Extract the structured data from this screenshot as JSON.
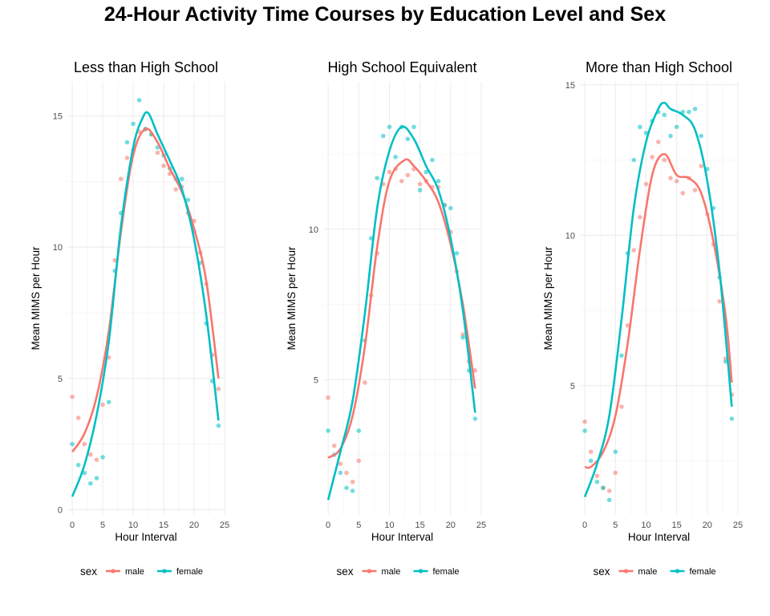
{
  "title": "24-Hour Activity Time Courses by Education Level and Sex",
  "colors": {
    "male": "#F8766D",
    "female": "#00BFC4"
  },
  "legend": {
    "title": "sex",
    "items": [
      "male",
      "female"
    ]
  },
  "chart_data": [
    {
      "type": "scatter",
      "title": "Less than High School",
      "xlabel": "Hour Interval",
      "ylabel": "Mean MIMS per Hour",
      "xlim": [
        -0.8,
        25
      ],
      "ylim": [
        -0.2,
        16.3
      ],
      "xticks": [
        0,
        5,
        10,
        15,
        20,
        25
      ],
      "yticks": [
        0,
        5,
        10,
        15
      ],
      "series": [
        {
          "name": "male",
          "points": [
            [
              0,
              4.3
            ],
            [
              1,
              3.5
            ],
            [
              2,
              2.5
            ],
            [
              3,
              2.1
            ],
            [
              4,
              1.9
            ],
            [
              5,
              4.0
            ],
            [
              6,
              5.8
            ],
            [
              7,
              9.5
            ],
            [
              8,
              12.6
            ],
            [
              9,
              13.4
            ],
            [
              10,
              13.7
            ],
            [
              11,
              14.4
            ],
            [
              12,
              14.5
            ],
            [
              13,
              14.3
            ],
            [
              14,
              13.6
            ],
            [
              15,
              13.1
            ],
            [
              16,
              12.8
            ],
            [
              17,
              12.2
            ],
            [
              18,
              12.3
            ],
            [
              19,
              11.3
            ],
            [
              20,
              11.0
            ],
            [
              21,
              9.8
            ],
            [
              22,
              8.6
            ],
            [
              23,
              5.9
            ],
            [
              24,
              4.6
            ]
          ],
          "smooth": [
            [
              0,
              2.2
            ],
            [
              2,
              2.9
            ],
            [
              4,
              4.3
            ],
            [
              6,
              6.8
            ],
            [
              8,
              10.6
            ],
            [
              10,
              13.5
            ],
            [
              12,
              14.5
            ],
            [
              14,
              14.0
            ],
            [
              16,
              13.0
            ],
            [
              18,
              12.1
            ],
            [
              20,
              10.7
            ],
            [
              22,
              8.7
            ],
            [
              24,
              5.0
            ]
          ]
        },
        {
          "name": "female",
          "points": [
            [
              0,
              2.5
            ],
            [
              1,
              1.7
            ],
            [
              2,
              1.4
            ],
            [
              3,
              1.0
            ],
            [
              4,
              1.2
            ],
            [
              5,
              2.0
            ],
            [
              6,
              4.1
            ],
            [
              7,
              9.1
            ],
            [
              8,
              11.3
            ],
            [
              9,
              14.0
            ],
            [
              10,
              14.7
            ],
            [
              11,
              15.6
            ],
            [
              12,
              14.5
            ],
            [
              13,
              14.3
            ],
            [
              14,
              13.8
            ],
            [
              15,
              13.5
            ],
            [
              16,
              13.0
            ],
            [
              17,
              12.6
            ],
            [
              18,
              12.6
            ],
            [
              19,
              11.8
            ],
            [
              20,
              10.6
            ],
            [
              21,
              9.4
            ],
            [
              22,
              7.1
            ],
            [
              23,
              4.9
            ],
            [
              24,
              3.2
            ]
          ],
          "smooth": [
            [
              0,
              0.5
            ],
            [
              2,
              1.7
            ],
            [
              4,
              3.6
            ],
            [
              6,
              6.4
            ],
            [
              8,
              10.8
            ],
            [
              10,
              13.8
            ],
            [
              11.5,
              14.9
            ],
            [
              12.5,
              15.1
            ],
            [
              14,
              14.3
            ],
            [
              16,
              13.3
            ],
            [
              18,
              12.2
            ],
            [
              20,
              10.3
            ],
            [
              22,
              7.4
            ],
            [
              24,
              3.4
            ]
          ]
        }
      ]
    },
    {
      "type": "scatter",
      "title": "High School Equivalent",
      "xlabel": "Hour Interval",
      "ylabel": "Mean MIMS per Hour",
      "xlim": [
        -0.8,
        25
      ],
      "ylim": [
        0.5,
        14.9
      ],
      "xticks": [
        0,
        5,
        10,
        15,
        20,
        25
      ],
      "yticks": [
        5,
        10
      ],
      "series": [
        {
          "name": "male",
          "points": [
            [
              0,
              4.4
            ],
            [
              1,
              2.8
            ],
            [
              2,
              2.2
            ],
            [
              3,
              1.9
            ],
            [
              4,
              1.6
            ],
            [
              5,
              2.3
            ],
            [
              6,
              4.9
            ],
            [
              7,
              7.8
            ],
            [
              8,
              9.2
            ],
            [
              9,
              11.5
            ],
            [
              10,
              11.9
            ],
            [
              11,
              12.0
            ],
            [
              12,
              11.6
            ],
            [
              13,
              11.8
            ],
            [
              14,
              12.0
            ],
            [
              15,
              11.5
            ],
            [
              16,
              11.6
            ],
            [
              17,
              11.4
            ],
            [
              18,
              11.4
            ],
            [
              19,
              10.8
            ],
            [
              20,
              9.9
            ],
            [
              21,
              8.6
            ],
            [
              22,
              6.5
            ],
            [
              23,
              5.6
            ],
            [
              24,
              5.3
            ]
          ],
          "smooth": [
            [
              0,
              2.4
            ],
            [
              2,
              2.7
            ],
            [
              4,
              3.8
            ],
            [
              6,
              6.1
            ],
            [
              8,
              9.4
            ],
            [
              10,
              11.6
            ],
            [
              12.5,
              12.3
            ],
            [
              14,
              12.1
            ],
            [
              16,
              11.6
            ],
            [
              18,
              10.9
            ],
            [
              20,
              9.5
            ],
            [
              22,
              7.5
            ],
            [
              24,
              4.7
            ]
          ]
        },
        {
          "name": "female",
          "points": [
            [
              0,
              3.3
            ],
            [
              1,
              2.5
            ],
            [
              2,
              1.9
            ],
            [
              3,
              1.4
            ],
            [
              4,
              1.3
            ],
            [
              5,
              3.3
            ],
            [
              6,
              6.3
            ],
            [
              7,
              9.7
            ],
            [
              8,
              11.7
            ],
            [
              9,
              13.1
            ],
            [
              10,
              13.4
            ],
            [
              11,
              12.4
            ],
            [
              12,
              13.4
            ],
            [
              13,
              13.0
            ],
            [
              14,
              13.4
            ],
            [
              15,
              11.3
            ],
            [
              16,
              11.9
            ],
            [
              17,
              12.3
            ],
            [
              18,
              11.6
            ],
            [
              19,
              10.8
            ],
            [
              20,
              10.7
            ],
            [
              21,
              9.2
            ],
            [
              22,
              6.4
            ],
            [
              23,
              5.3
            ],
            [
              24,
              3.7
            ]
          ],
          "smooth": [
            [
              0,
              1.0
            ],
            [
              2,
              2.6
            ],
            [
              4,
              4.3
            ],
            [
              6,
              7.2
            ],
            [
              8,
              10.7
            ],
            [
              10,
              12.6
            ],
            [
              12,
              13.4
            ],
            [
              14,
              13.0
            ],
            [
              16,
              12.1
            ],
            [
              18,
              11.3
            ],
            [
              20,
              9.7
            ],
            [
              22,
              7.3
            ],
            [
              24,
              3.9
            ]
          ]
        }
      ]
    },
    {
      "type": "scatter",
      "title": "More than High School",
      "xlabel": "Hour Interval",
      "ylabel": "Mean MIMS per Hour",
      "xlim": [
        -0.8,
        25
      ],
      "ylim": [
        0.7,
        15.1
      ],
      "xticks": [
        0,
        5,
        10,
        15,
        20,
        25
      ],
      "yticks": [
        5,
        10,
        15
      ],
      "series": [
        {
          "name": "male",
          "points": [
            [
              0,
              3.8
            ],
            [
              1,
              2.8
            ],
            [
              2,
              2.0
            ],
            [
              3,
              1.6
            ],
            [
              4,
              1.5
            ],
            [
              5,
              2.1
            ],
            [
              6,
              4.3
            ],
            [
              7,
              7.0
            ],
            [
              8,
              9.5
            ],
            [
              9,
              10.6
            ],
            [
              10,
              11.7
            ],
            [
              11,
              12.6
            ],
            [
              12,
              13.1
            ],
            [
              13,
              12.5
            ],
            [
              14,
              11.9
            ],
            [
              15,
              11.8
            ],
            [
              16,
              11.4
            ],
            [
              17,
              11.9
            ],
            [
              18,
              11.5
            ],
            [
              19,
              12.3
            ],
            [
              20,
              10.7
            ],
            [
              21,
              9.7
            ],
            [
              22,
              7.8
            ],
            [
              23,
              5.9
            ],
            [
              24,
              4.7
            ]
          ],
          "smooth": [
            [
              0,
              2.3
            ],
            [
              1,
              2.3
            ],
            [
              3,
              2.8
            ],
            [
              5,
              4.0
            ],
            [
              7,
              6.4
            ],
            [
              9,
              9.5
            ],
            [
              11,
              12.0
            ],
            [
              13,
              12.7
            ],
            [
              15,
              12.0
            ],
            [
              17,
              11.9
            ],
            [
              19,
              11.4
            ],
            [
              21,
              9.8
            ],
            [
              23,
              7.3
            ],
            [
              24,
              5.1
            ]
          ]
        },
        {
          "name": "female",
          "points": [
            [
              0,
              3.5
            ],
            [
              1,
              2.5
            ],
            [
              2,
              1.8
            ],
            [
              3,
              1.6
            ],
            [
              4,
              1.2
            ],
            [
              5,
              2.8
            ],
            [
              6,
              6.0
            ],
            [
              7,
              9.4
            ],
            [
              8,
              12.5
            ],
            [
              9,
              13.6
            ],
            [
              10,
              13.4
            ],
            [
              11,
              13.8
            ],
            [
              12,
              14.1
            ],
            [
              13,
              14.0
            ],
            [
              14,
              13.3
            ],
            [
              15,
              13.6
            ],
            [
              16,
              14.1
            ],
            [
              17,
              14.1
            ],
            [
              18,
              14.2
            ],
            [
              19,
              13.3
            ],
            [
              20,
              12.2
            ],
            [
              21,
              10.9
            ],
            [
              22,
              8.6
            ],
            [
              23,
              5.8
            ],
            [
              24,
              3.9
            ]
          ],
          "smooth": [
            [
              0,
              1.3
            ],
            [
              2,
              2.4
            ],
            [
              4,
              4.0
            ],
            [
              6,
              7.2
            ],
            [
              8,
              10.9
            ],
            [
              10,
              13.1
            ],
            [
              12,
              14.2
            ],
            [
              13,
              14.4
            ],
            [
              14,
              14.2
            ],
            [
              16,
              14.0
            ],
            [
              18,
              13.5
            ],
            [
              20,
              11.8
            ],
            [
              22,
              8.8
            ],
            [
              24,
              4.3
            ]
          ]
        }
      ]
    }
  ]
}
